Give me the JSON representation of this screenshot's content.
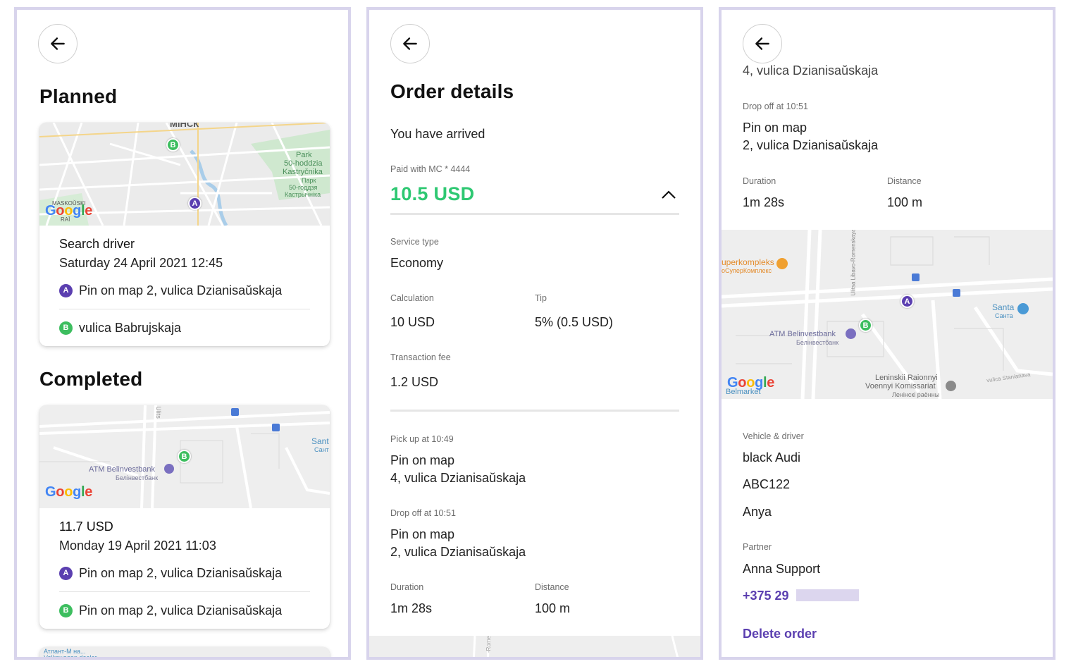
{
  "colors": {
    "accent": "#5b3fb0",
    "price_green": "#2ec872",
    "frame": "#d8d4ec",
    "pin_a": "#5b3fb0",
    "pin_b": "#3dbe5f"
  },
  "icons": {
    "back": "arrow-left-icon",
    "collapse": "chevron-up-icon"
  },
  "panel1": {
    "planned_heading": "Planned",
    "planned": {
      "title": "Search driver",
      "datetime": "Saturday 24 April 2021 12:45",
      "pickup": "Pin on map 2, vulica Dzianisaŭskaja",
      "dropoff": "vulica Babrujskaja",
      "pin_a": "A",
      "pin_b": "B",
      "map_labels": {
        "city": "МІНСК",
        "park_1": "Park",
        "park_2": "50-hoddzia",
        "park_3": "Kastryčnika",
        "park_4": "Парк",
        "park_5": "50-годдзя",
        "park_6": "Кастрычніка",
        "district_1": "MASKOŬSKI",
        "district_2": "RAĬ"
      }
    },
    "completed_heading": "Completed",
    "completed": {
      "title": "11.7 USD",
      "datetime": "Monday 19 April 2021 11:03",
      "pickup": "Pin on map 2, vulica Dzianisaŭskaja",
      "dropoff": "Pin on map 2, vulica Dzianisaŭskaja",
      "pin_a": "A",
      "pin_b": "B",
      "map_labels": {
        "atm_1": "ATM Belinvestbank",
        "atm_2": "Белінвестбанк",
        "santa_1": "Sant",
        "santa_2": "Сант",
        "street": "Ulits"
      }
    },
    "next_card_labels": {
      "dealer": "Volkswagen dealer",
      "atlant": "Атлант-М на..."
    }
  },
  "panel2": {
    "title": "Order details",
    "status": "You have arrived",
    "paid_label": "Paid with MC * 4444",
    "price": "10.5 USD",
    "service_type_label": "Service type",
    "service_type": "Economy",
    "calculation_label": "Calculation",
    "calculation": "10 USD",
    "tip_label": "Tip",
    "tip": "5% (0.5 USD)",
    "fee_label": "Transaction fee",
    "fee": "1.2 USD",
    "pickup_label": "Pick up at 10:49",
    "pickup_line1": "Pin on map",
    "pickup_line2": "4, vulica Dzianisaŭskaja",
    "dropoff_label": "Drop off at 10:51",
    "dropoff_line1": "Pin on map",
    "dropoff_line2": "2, vulica Dzianisaŭskaja",
    "duration_label": "Duration",
    "duration": "1m 28s",
    "distance_label": "Distance",
    "distance": "100 m",
    "map_street": "-Rome"
  },
  "panel3": {
    "pickup_line2": "4, vulica Dzianisaŭskaja",
    "dropoff_label": "Drop off at 10:51",
    "dropoff_line1": "Pin on map",
    "dropoff_line2": "2, vulica Dzianisaŭskaja",
    "duration_label": "Duration",
    "duration": "1m 28s",
    "distance_label": "Distance",
    "distance": "100 m",
    "map_labels": {
      "super_1": "uperkompleks",
      "super_2": "оСуперКомплекс",
      "atm_1": "ATM Belinvestbank",
      "atm_2": "Белінвестбанк",
      "santa_1": "Santa",
      "santa_2": "Санта",
      "lenin_1": "Leninskii Raionnyi",
      "lenin_2": "Voennyi Komissariat",
      "lenin_3": "Ленінскі раённы",
      "belmarket": "Belmarket",
      "street_1": "Ulitsa Libavo-Romenskaya",
      "street_2": "vulica Stanianava"
    },
    "pin_a": "A",
    "pin_b": "B",
    "vehicle_label": "Vehicle & driver",
    "vehicle": "black Audi",
    "plate": "ABC122",
    "driver": "Anya",
    "partner_label": "Partner",
    "partner": "Anna Support",
    "phone": "+375 29",
    "delete": "Delete order"
  }
}
